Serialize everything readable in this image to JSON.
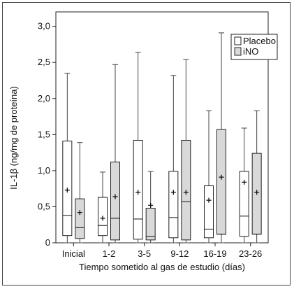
{
  "chart_data": {
    "type": "box",
    "title": "",
    "xlabel": "Tiempo sometido al gas de estudio (días)",
    "ylabel": "IL-1β (ng/mg de proteína)",
    "ylim": [
      0,
      3.2
    ],
    "yticks": [
      "0",
      "0,5",
      "1,0",
      "1,5",
      "2,0",
      "2,5",
      "3,0"
    ],
    "ytick_values": [
      0,
      0.5,
      1.0,
      1.5,
      2.0,
      2.5,
      3.0
    ],
    "categories": [
      "Inicial",
      "1-2",
      "3-5",
      "9-12",
      "16-19",
      "23-26"
    ],
    "legend": {
      "position": "top-right",
      "entries": [
        "Placebo",
        "iNO"
      ]
    },
    "series": [
      {
        "name": "Placebo",
        "color": "#ffffff",
        "boxes": [
          {
            "min": 0.0,
            "q1": 0.1,
            "median": 0.38,
            "q3": 1.41,
            "max": 2.35,
            "mean": 0.73
          },
          {
            "min": 0.0,
            "q1": 0.1,
            "median": 0.24,
            "q3": 0.63,
            "max": 0.98,
            "mean": 0.34
          },
          {
            "min": 0.0,
            "q1": 0.05,
            "median": 0.33,
            "q3": 1.42,
            "max": 2.64,
            "mean": 0.7
          },
          {
            "min": 0.0,
            "q1": 0.07,
            "median": 0.35,
            "q3": 0.99,
            "max": 2.32,
            "mean": 0.7
          },
          {
            "min": 0.0,
            "q1": 0.07,
            "median": 0.19,
            "q3": 0.79,
            "max": 1.83,
            "mean": 0.59
          },
          {
            "min": 0.0,
            "q1": 0.09,
            "median": 0.37,
            "q3": 0.99,
            "max": 1.59,
            "mean": 0.84
          }
        ]
      },
      {
        "name": "iNO",
        "color": "#d9d9d9",
        "boxes": [
          {
            "min": 0.0,
            "q1": 0.06,
            "median": 0.21,
            "q3": 0.61,
            "max": 1.39,
            "mean": 0.42
          },
          {
            "min": 0.0,
            "q1": 0.04,
            "median": 0.34,
            "q3": 1.12,
            "max": 2.47,
            "mean": 0.64
          },
          {
            "min": 0.0,
            "q1": 0.04,
            "median": 0.09,
            "q3": 0.48,
            "max": 0.99,
            "mean": 0.52
          },
          {
            "min": 0.0,
            "q1": 0.04,
            "median": 0.57,
            "q3": 1.42,
            "max": 2.54,
            "mean": 0.7
          },
          {
            "min": 0.0,
            "q1": 0.12,
            "median": 0.12,
            "q3": 1.57,
            "max": 2.91,
            "mean": 0.91
          },
          {
            "min": 0.0,
            "q1": 0.12,
            "median": 0.12,
            "q3": 1.24,
            "max": 1.83,
            "mean": 0.7
          }
        ]
      }
    ]
  }
}
